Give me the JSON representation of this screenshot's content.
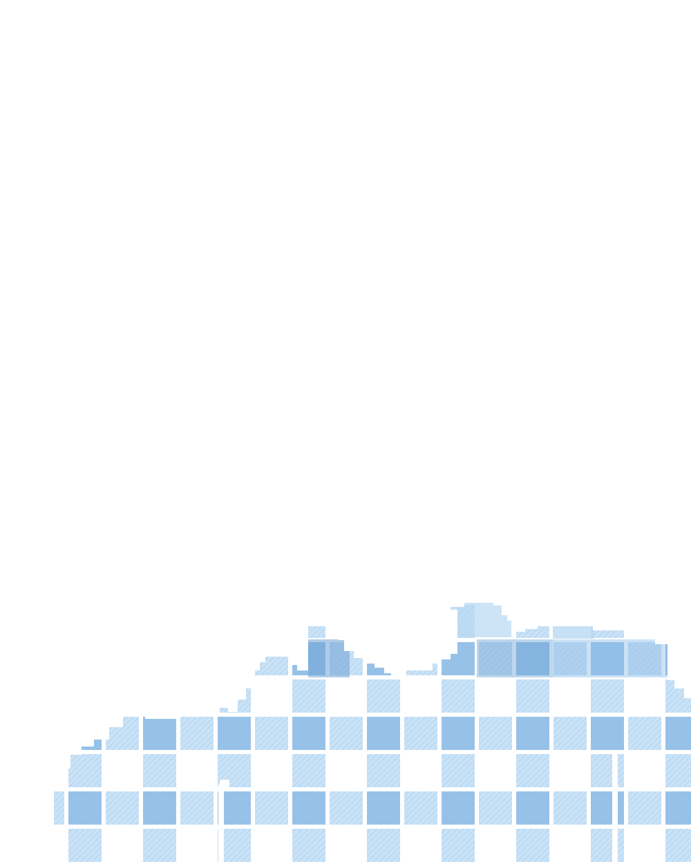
{
  "scene": {
    "subject": "gingham-fabric-skyline-cutout",
    "pattern": "gingham",
    "colors": {
      "background": "#ffffff",
      "light_blue": "#b8d8f2",
      "mid_blue": "#8fbde6",
      "dark_blue": "#6fa3d4",
      "hatch": "#9cc6ea"
    }
  }
}
